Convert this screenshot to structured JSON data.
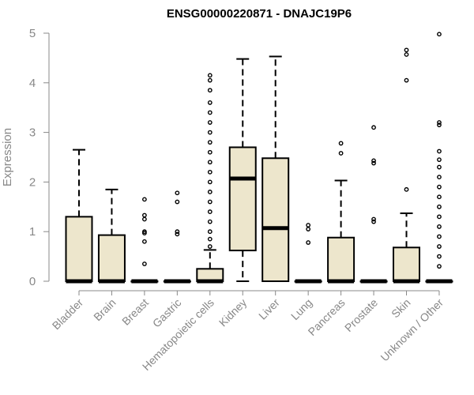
{
  "chart_data": {
    "type": "boxplot",
    "title": "ENSG00000220871 - DNAJC19P6",
    "xlabel": "",
    "ylabel": "Expression",
    "ylim": [
      0,
      5
    ],
    "yticks": [
      "0",
      "1",
      "2",
      "3",
      "4",
      "5"
    ],
    "grid": false,
    "colors": {
      "box_fill": "#ede6cc",
      "stroke": "#000000",
      "axis": "#888888"
    },
    "categories": [
      "Bladder",
      "Brain",
      "Breast",
      "Gastric",
      "Hematopoietic cells",
      "Kidney",
      "Liver",
      "Lung",
      "Pancreas",
      "Prostate",
      "Skin",
      "Unknown / Other"
    ],
    "boxes": [
      {
        "q1": 0,
        "median": 0,
        "q3": 1.3,
        "whisker_low": 0,
        "whisker_high": 2.65,
        "outliers": []
      },
      {
        "q1": 0,
        "median": 0,
        "q3": 0.93,
        "whisker_low": 0,
        "whisker_high": 1.85,
        "outliers": []
      },
      {
        "q1": 0,
        "median": 0,
        "q3": 0,
        "whisker_low": 0,
        "whisker_high": 0,
        "outliers": [
          0.35,
          0.8,
          0.97,
          1.0,
          1.25,
          1.33,
          1.65
        ]
      },
      {
        "q1": 0,
        "median": 0,
        "q3": 0,
        "whisker_low": 0,
        "whisker_high": 0,
        "outliers": [
          0.95,
          1.0,
          1.6,
          1.78
        ]
      },
      {
        "q1": 0,
        "median": 0,
        "q3": 0.25,
        "whisker_low": 0,
        "whisker_high": 0.63,
        "outliers": [
          0.7,
          0.85,
          1.0,
          1.2,
          1.4,
          1.6,
          1.8,
          2.0,
          2.2,
          2.4,
          2.6,
          2.8,
          3.0,
          3.2,
          3.4,
          3.6,
          3.85,
          4.05,
          4.15
        ]
      },
      {
        "q1": 0.62,
        "median": 2.07,
        "q3": 2.7,
        "whisker_low": 0,
        "whisker_high": 4.48,
        "outliers": []
      },
      {
        "q1": 0,
        "median": 1.07,
        "q3": 2.48,
        "whisker_low": 0,
        "whisker_high": 4.53,
        "outliers": []
      },
      {
        "q1": 0,
        "median": 0,
        "q3": 0,
        "whisker_low": 0,
        "whisker_high": 0,
        "outliers": [
          0.78,
          1.05,
          1.13
        ]
      },
      {
        "q1": 0,
        "median": 0,
        "q3": 0.88,
        "whisker_low": 0,
        "whisker_high": 2.03,
        "outliers": [
          2.58,
          2.78
        ]
      },
      {
        "q1": 0,
        "median": 0,
        "q3": 0,
        "whisker_low": 0,
        "whisker_high": 0,
        "outliers": [
          1.2,
          1.25,
          2.38,
          2.43,
          3.1
        ]
      },
      {
        "q1": 0,
        "median": 0,
        "q3": 0.68,
        "whisker_low": 0,
        "whisker_high": 1.37,
        "outliers": [
          1.85,
          4.05,
          4.57,
          4.66
        ]
      },
      {
        "q1": 0,
        "median": 0,
        "q3": 0,
        "whisker_low": 0,
        "whisker_high": 0,
        "outliers": [
          0.3,
          0.5,
          0.7,
          0.9,
          1.1,
          1.3,
          1.5,
          1.7,
          1.9,
          2.1,
          2.3,
          2.45,
          2.62,
          3.15,
          3.2,
          4.98
        ]
      }
    ]
  }
}
